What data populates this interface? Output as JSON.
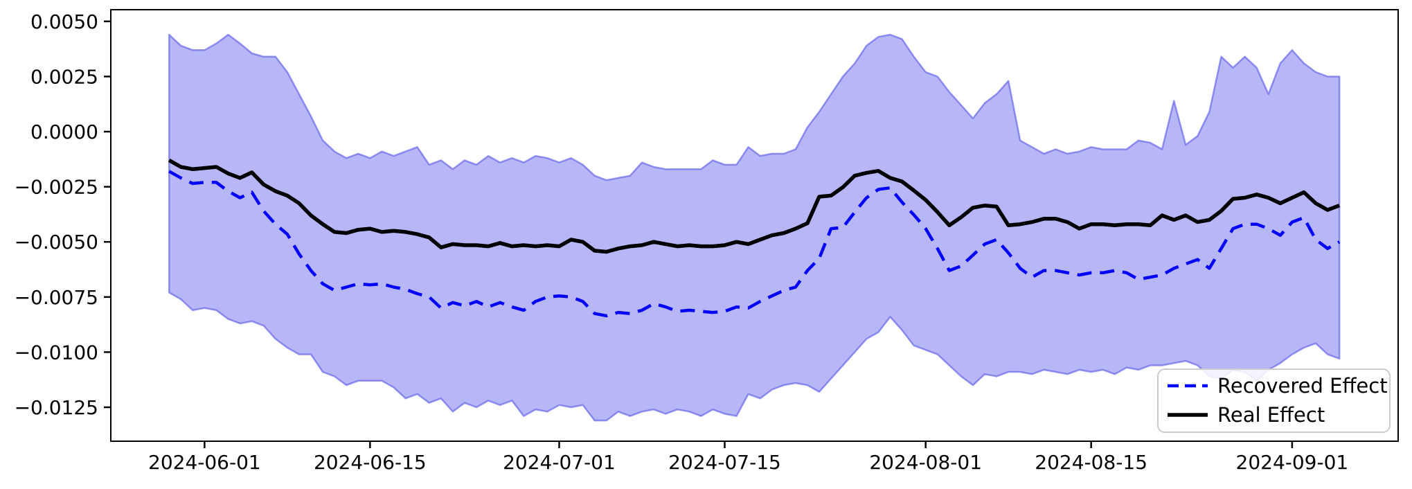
{
  "figure": {
    "background": "#ffffff",
    "axis_color": "#000000"
  },
  "legend": {
    "position": "lower right",
    "entries": [
      {
        "label": "Recovered Effect",
        "color": "#0000ff",
        "style": "dashed"
      },
      {
        "label": "Real Effect",
        "color": "#000000",
        "style": "solid"
      }
    ]
  },
  "chart_data": {
    "type": "line",
    "title": "",
    "xlabel": "",
    "ylabel": "",
    "grid": false,
    "legend_position": "lower right",
    "ylim": [
      -0.01404,
      0.00553
    ],
    "xlim_index": [
      -4.93,
      103.97
    ],
    "x": [
      "2024-05-29",
      "2024-05-30",
      "2024-05-31",
      "2024-06-01",
      "2024-06-02",
      "2024-06-03",
      "2024-06-04",
      "2024-06-05",
      "2024-06-06",
      "2024-06-07",
      "2024-06-08",
      "2024-06-09",
      "2024-06-10",
      "2024-06-11",
      "2024-06-12",
      "2024-06-13",
      "2024-06-14",
      "2024-06-15",
      "2024-06-16",
      "2024-06-17",
      "2024-06-18",
      "2024-06-19",
      "2024-06-20",
      "2024-06-21",
      "2024-06-22",
      "2024-06-23",
      "2024-06-24",
      "2024-06-25",
      "2024-06-26",
      "2024-06-27",
      "2024-06-28",
      "2024-06-29",
      "2024-06-30",
      "2024-07-01",
      "2024-07-02",
      "2024-07-03",
      "2024-07-04",
      "2024-07-05",
      "2024-07-06",
      "2024-07-07",
      "2024-07-08",
      "2024-07-09",
      "2024-07-10",
      "2024-07-11",
      "2024-07-12",
      "2024-07-13",
      "2024-07-14",
      "2024-07-15",
      "2024-07-16",
      "2024-07-17",
      "2024-07-18",
      "2024-07-19",
      "2024-07-20",
      "2024-07-21",
      "2024-07-22",
      "2024-07-23",
      "2024-07-24",
      "2024-07-25",
      "2024-07-26",
      "2024-07-27",
      "2024-07-28",
      "2024-07-29",
      "2024-07-30",
      "2024-07-31",
      "2024-08-01",
      "2024-08-02",
      "2024-08-03",
      "2024-08-04",
      "2024-08-05",
      "2024-08-06",
      "2024-08-07",
      "2024-08-08",
      "2024-08-09",
      "2024-08-10",
      "2024-08-11",
      "2024-08-12",
      "2024-08-13",
      "2024-08-14",
      "2024-08-15",
      "2024-08-16",
      "2024-08-17",
      "2024-08-18",
      "2024-08-19",
      "2024-08-20",
      "2024-08-21",
      "2024-08-22",
      "2024-08-23",
      "2024-08-24",
      "2024-08-25",
      "2024-08-26",
      "2024-08-27",
      "2024-08-28",
      "2024-08-29",
      "2024-08-30",
      "2024-08-31",
      "2024-09-01",
      "2024-09-02",
      "2024-09-03",
      "2024-09-04",
      "2024-09-05"
    ],
    "series": [
      {
        "name": "Recovered Effect",
        "color": "#0000ff",
        "style": "dashed",
        "values": [
          -0.0018,
          -0.0021,
          -0.00235,
          -0.0023,
          -0.0023,
          -0.0027,
          -0.003,
          -0.00275,
          -0.0036,
          -0.0042,
          -0.00465,
          -0.00555,
          -0.0063,
          -0.0069,
          -0.0072,
          -0.00705,
          -0.0069,
          -0.00695,
          -0.0069,
          -0.00705,
          -0.00715,
          -0.00735,
          -0.0075,
          -0.008,
          -0.00775,
          -0.0079,
          -0.0077,
          -0.00795,
          -0.00775,
          -0.00795,
          -0.0081,
          -0.0077,
          -0.0075,
          -0.00745,
          -0.0075,
          -0.0077,
          -0.00825,
          -0.00835,
          -0.0082,
          -0.00825,
          -0.0081,
          -0.0078,
          -0.00795,
          -0.00815,
          -0.0081,
          -0.00815,
          -0.0082,
          -0.00815,
          -0.00795,
          -0.008,
          -0.0077,
          -0.00745,
          -0.0072,
          -0.00705,
          -0.0063,
          -0.00575,
          -0.0044,
          -0.00435,
          -0.00365,
          -0.003,
          -0.00262,
          -0.00255,
          -0.0032,
          -0.00377,
          -0.0044,
          -0.0053,
          -0.0063,
          -0.0061,
          -0.0056,
          -0.0051,
          -0.0049,
          -0.0055,
          -0.0062,
          -0.0066,
          -0.0063,
          -0.0063,
          -0.0064,
          -0.0065,
          -0.0064,
          -0.0064,
          -0.0063,
          -0.0064,
          -0.0067,
          -0.0066,
          -0.0065,
          -0.0062,
          -0.006,
          -0.0058,
          -0.0062,
          -0.0053,
          -0.0044,
          -0.0042,
          -0.0042,
          -0.0044,
          -0.0047,
          -0.0041,
          -0.0039,
          -0.0049,
          -0.0053,
          -0.005
        ]
      },
      {
        "name": "Real Effect",
        "color": "#000000",
        "style": "solid",
        "values": [
          -0.0013,
          -0.0016,
          -0.0017,
          -0.00165,
          -0.0016,
          -0.0019,
          -0.0021,
          -0.00185,
          -0.0024,
          -0.0027,
          -0.0029,
          -0.00325,
          -0.0038,
          -0.0042,
          -0.00455,
          -0.0046,
          -0.00445,
          -0.0044,
          -0.00455,
          -0.0045,
          -0.00455,
          -0.00465,
          -0.0048,
          -0.00525,
          -0.0051,
          -0.00515,
          -0.00515,
          -0.0052,
          -0.00505,
          -0.0052,
          -0.00515,
          -0.0052,
          -0.00515,
          -0.0052,
          -0.0049,
          -0.005,
          -0.0054,
          -0.00545,
          -0.0053,
          -0.0052,
          -0.00515,
          -0.005,
          -0.0051,
          -0.0052,
          -0.00515,
          -0.0052,
          -0.0052,
          -0.00515,
          -0.005,
          -0.0051,
          -0.0049,
          -0.0047,
          -0.0046,
          -0.0044,
          -0.00415,
          -0.00295,
          -0.0029,
          -0.00252,
          -0.002,
          -0.00187,
          -0.00178,
          -0.0021,
          -0.00226,
          -0.00267,
          -0.0031,
          -0.00365,
          -0.00425,
          -0.00388,
          -0.00345,
          -0.00335,
          -0.0034,
          -0.00425,
          -0.0042,
          -0.0041,
          -0.00395,
          -0.00395,
          -0.0041,
          -0.0044,
          -0.0042,
          -0.0042,
          -0.00425,
          -0.0042,
          -0.0042,
          -0.00425,
          -0.0038,
          -0.004,
          -0.0038,
          -0.0041,
          -0.004,
          -0.0036,
          -0.00305,
          -0.003,
          -0.00285,
          -0.003,
          -0.00325,
          -0.003,
          -0.00275,
          -0.00325,
          -0.00355,
          -0.00335
        ]
      }
    ],
    "band": {
      "name": "confidence interval",
      "fill": "#1e1ee6",
      "fill_opacity": 0.32,
      "edge": "#3c3ce6",
      "edge_opacity": 0.5,
      "upper": [
        0.0044,
        0.0039,
        0.0037,
        0.0037,
        0.004,
        0.0044,
        0.004,
        0.00355,
        0.0034,
        0.0034,
        0.0027,
        0.0017,
        0.0007,
        -0.0004,
        -0.0009,
        -0.0012,
        -0.001,
        -0.0012,
        -0.0009,
        -0.0011,
        -0.0009,
        -0.0007,
        -0.0015,
        -0.0013,
        -0.0017,
        -0.0013,
        -0.0015,
        -0.0011,
        -0.0014,
        -0.0012,
        -0.0014,
        -0.0011,
        -0.0012,
        -0.0014,
        -0.0012,
        -0.0015,
        -0.002,
        -0.0022,
        -0.0021,
        -0.002,
        -0.0014,
        -0.0016,
        -0.0017,
        -0.0017,
        -0.0017,
        -0.0017,
        -0.0013,
        -0.0015,
        -0.0015,
        -0.0007,
        -0.0011,
        -0.001,
        -0.001,
        -0.0008,
        0.0002,
        0.0009,
        0.0017,
        0.0025,
        0.0031,
        0.0039,
        0.0043,
        0.0044,
        0.0042,
        0.0034,
        0.0027,
        0.0025,
        0.0018,
        0.0012,
        0.0006,
        0.0013,
        0.0017,
        0.0023,
        -0.0004,
        -0.0007,
        -0.001,
        -0.0008,
        -0.001,
        -0.0009,
        -0.0007,
        -0.0008,
        -0.0008,
        -0.0008,
        -0.0004,
        -0.0005,
        -0.0008,
        0.0014,
        -0.0006,
        -0.0002,
        0.0009,
        0.0034,
        0.0029,
        0.0034,
        0.0029,
        0.0017,
        0.0031,
        0.0037,
        0.0031,
        0.0027,
        0.0025,
        0.0025
      ],
      "lower": [
        -0.0073,
        -0.0076,
        -0.0081,
        -0.008,
        -0.0081,
        -0.0085,
        -0.0087,
        -0.0086,
        -0.0088,
        -0.0094,
        -0.0098,
        -0.0101,
        -0.0101,
        -0.0109,
        -0.0111,
        -0.0115,
        -0.0113,
        -0.0113,
        -0.0113,
        -0.0116,
        -0.0121,
        -0.0119,
        -0.0123,
        -0.0121,
        -0.0127,
        -0.0123,
        -0.0125,
        -0.0122,
        -0.0124,
        -0.0122,
        -0.0129,
        -0.0126,
        -0.0127,
        -0.0124,
        -0.0125,
        -0.0124,
        -0.0131,
        -0.0131,
        -0.0127,
        -0.0129,
        -0.0127,
        -0.0126,
        -0.0128,
        -0.0126,
        -0.0127,
        -0.0129,
        -0.0126,
        -0.0128,
        -0.0129,
        -0.0119,
        -0.0121,
        -0.0117,
        -0.0115,
        -0.0114,
        -0.0115,
        -0.0118,
        -0.0112,
        -0.0106,
        -0.01,
        -0.0094,
        -0.0091,
        -0.0084,
        -0.009,
        -0.0097,
        -0.0099,
        -0.0101,
        -0.0106,
        -0.0111,
        -0.0115,
        -0.011,
        -0.0111,
        -0.0109,
        -0.0109,
        -0.011,
        -0.0108,
        -0.0109,
        -0.011,
        -0.0108,
        -0.0109,
        -0.0108,
        -0.011,
        -0.0107,
        -0.0108,
        -0.0106,
        -0.0106,
        -0.0105,
        -0.0104,
        -0.0106,
        -0.0111,
        -0.0112,
        -0.0108,
        -0.0109,
        -0.0113,
        -0.0108,
        -0.0105,
        -0.0101,
        -0.0098,
        -0.0096,
        -0.0101,
        -0.0103
      ]
    },
    "x_ticks": [
      {
        "index": 3,
        "label": "2024-06-01"
      },
      {
        "index": 17,
        "label": "2024-06-15"
      },
      {
        "index": 33,
        "label": "2024-07-01"
      },
      {
        "index": 47,
        "label": "2024-07-15"
      },
      {
        "index": 64,
        "label": "2024-08-01"
      },
      {
        "index": 78,
        "label": "2024-08-15"
      },
      {
        "index": 95,
        "label": "2024-09-01"
      }
    ],
    "y_ticks": [
      {
        "value": 0.005,
        "label": "0.0050"
      },
      {
        "value": 0.0025,
        "label": "0.0025"
      },
      {
        "value": 0.0,
        "label": "0.0000"
      },
      {
        "value": -0.0025,
        "label": "−0.0025"
      },
      {
        "value": -0.005,
        "label": "−0.0050"
      },
      {
        "value": -0.0075,
        "label": "−0.0075"
      },
      {
        "value": -0.01,
        "label": "−0.0100"
      },
      {
        "value": -0.0125,
        "label": "−0.0125"
      }
    ]
  }
}
